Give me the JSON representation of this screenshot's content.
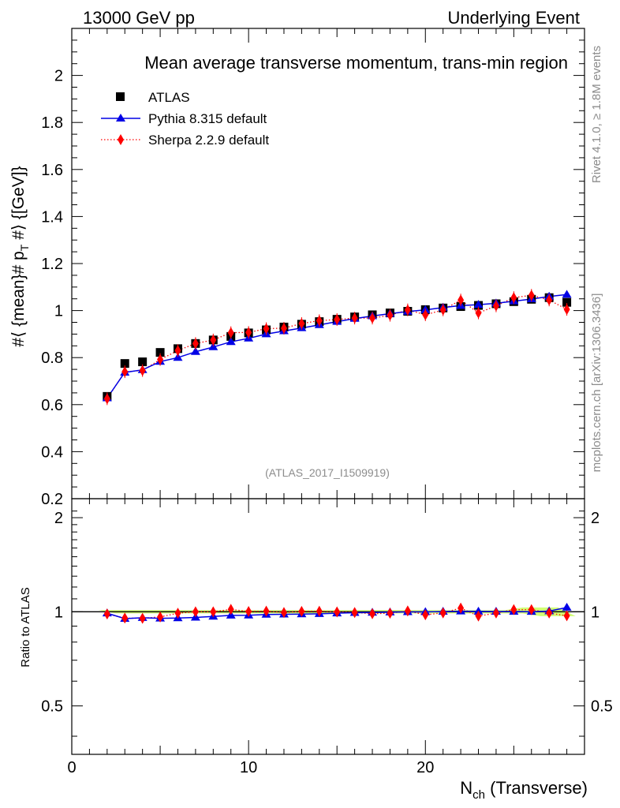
{
  "header": {
    "left": "13000 GeV pp",
    "right": "Underlying Event"
  },
  "side_text": {
    "rivet": "Rivet 4.1.0, ≥ 1.8M events",
    "mcplots": "mcplots.cern.ch [arXiv:1306.3436]"
  },
  "colors": {
    "atlas": "#000000",
    "pythia": "#0000e6",
    "sherpa": "#ff0000",
    "band": "#ccff66"
  },
  "chart_data": [
    {
      "type": "scatter",
      "title": "Mean average transverse momentum, trans-min region",
      "xlabel": "N_ch (Transverse)",
      "xlabel_main": "N",
      "xlabel_sub": "ch",
      "xlabel_tail": " (Transverse)",
      "ylabel": "#⟨ {mean}# p_T #⟩ {[GeV]}",
      "ylabel_parts": {
        "pre": "#⟨ {mean}# p",
        "sub": "T",
        "post": " #⟩ {[GeV]}"
      },
      "xlim": [
        0,
        29
      ],
      "ylim": [
        0.2,
        2.2
      ],
      "yticks": [
        0.2,
        0.4,
        0.6,
        0.8,
        1,
        1.2,
        1.4,
        1.6,
        1.8,
        2
      ],
      "ytick_labels": [
        "0.2",
        "0.4",
        "0.6",
        "0.8",
        "1",
        "1.2",
        "1.4",
        "1.6",
        "1.8",
        "2"
      ],
      "watermark": "(ATLAS_2017_I1509919)",
      "x": [
        2,
        3,
        4,
        5,
        6,
        7,
        8,
        9,
        10,
        11,
        12,
        13,
        14,
        15,
        16,
        17,
        18,
        19,
        20,
        21,
        22,
        23,
        24,
        25,
        26,
        27,
        28
      ],
      "series": [
        {
          "name": "ATLAS",
          "style": "square",
          "values": [
            0.635,
            0.775,
            0.782,
            0.822,
            0.838,
            0.86,
            0.875,
            0.89,
            0.905,
            0.918,
            0.93,
            0.942,
            0.953,
            0.963,
            0.973,
            0.982,
            0.99,
            0.997,
            1.004,
            1.011,
            1.017,
            1.022,
            1.029,
            1.038,
            1.048,
            1.055,
            1.035
          ]
        },
        {
          "name": "Pythia 8.315 default",
          "style": "triangle-line",
          "values": [
            0.628,
            0.737,
            0.748,
            0.783,
            0.8,
            0.825,
            0.845,
            0.867,
            0.882,
            0.9,
            0.913,
            0.926,
            0.939,
            0.953,
            0.966,
            0.977,
            0.987,
            0.996,
            1.003,
            1.013,
            1.021,
            1.025,
            1.031,
            1.04,
            1.049,
            1.06,
            1.068
          ]
        },
        {
          "name": "Sherpa 2.2.9 default",
          "style": "diamond-dotted",
          "values": [
            0.625,
            0.74,
            0.745,
            0.792,
            0.83,
            0.86,
            0.875,
            0.906,
            0.907,
            0.923,
            0.925,
            0.945,
            0.957,
            0.962,
            0.968,
            0.968,
            0.98,
            1.003,
            0.982,
            1.003,
            1.045,
            0.99,
            1.02,
            1.055,
            1.065,
            1.045,
            1.005
          ]
        }
      ]
    },
    {
      "type": "scatter",
      "title": "",
      "xlabel": "N_ch (Transverse)",
      "ylabel": "Ratio to ATLAS",
      "xlim": [
        0,
        29
      ],
      "ylim": [
        0.35,
        2.3
      ],
      "yticks": [
        0.5,
        1,
        2
      ],
      "ytick_labels": [
        "0.5",
        "1",
        "2"
      ],
      "xticks": [
        0,
        10,
        20
      ],
      "xtick_labels": [
        "0",
        "10",
        "20"
      ],
      "x": [
        2,
        3,
        4,
        5,
        6,
        7,
        8,
        9,
        10,
        11,
        12,
        13,
        14,
        15,
        16,
        17,
        18,
        19,
        20,
        21,
        22,
        23,
        24,
        25,
        26,
        27,
        28
      ],
      "series": [
        {
          "name": "Pythia 8.315 default",
          "values": [
            0.99,
            0.951,
            0.957,
            0.953,
            0.955,
            0.959,
            0.966,
            0.974,
            0.975,
            0.98,
            0.982,
            0.983,
            0.985,
            0.99,
            0.993,
            0.995,
            0.997,
            0.999,
            0.999,
            1.002,
            1.004,
            1.003,
            1.002,
            1.002,
            1.001,
            1.005,
            1.032
          ]
        },
        {
          "name": "Sherpa 2.2.9 default",
          "values": [
            0.984,
            0.955,
            0.953,
            0.963,
            0.99,
            1.0,
            1.0,
            1.018,
            1.002,
            1.005,
            0.995,
            1.003,
            1.004,
            0.999,
            0.995,
            0.986,
            0.99,
            1.006,
            0.978,
            0.992,
            1.028,
            0.969,
            0.991,
            1.016,
            1.016,
            0.991,
            0.971
          ]
        }
      ]
    }
  ]
}
